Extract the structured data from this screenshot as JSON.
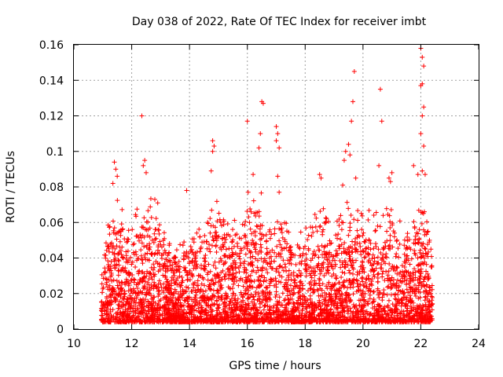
{
  "chart_data": {
    "type": "scatter",
    "title": "Day 038 of 2022, Rate Of TEC Index for receiver imbt",
    "xlabel": "GPS time / hours",
    "ylabel": "ROTI / TECUs",
    "xlim": [
      10,
      24
    ],
    "ylim": [
      0,
      0.16
    ],
    "xticks": [
      "10",
      "12",
      "14",
      "16",
      "18",
      "20",
      "22",
      "24"
    ],
    "yticks": [
      "0",
      "0.02",
      "0.04",
      "0.06",
      "0.08",
      "0.1",
      "0.12",
      "0.14",
      "0.16"
    ],
    "grid": true,
    "marker": "plus",
    "color": "#ff0000",
    "points": [
      [
        11.4,
        0.094
      ],
      [
        11.45,
        0.09
      ],
      [
        11.5,
        0.086
      ],
      [
        11.35,
        0.082
      ],
      [
        12.35,
        0.12
      ],
      [
        12.45,
        0.095
      ],
      [
        12.4,
        0.092
      ],
      [
        12.5,
        0.088
      ],
      [
        12.8,
        0.073
      ],
      [
        12.9,
        0.071
      ],
      [
        13.9,
        0.078
      ],
      [
        14.8,
        0.106
      ],
      [
        14.85,
        0.103
      ],
      [
        14.8,
        0.1
      ],
      [
        14.75,
        0.089
      ],
      [
        16.0,
        0.117
      ],
      [
        16.2,
        0.087
      ],
      [
        16.4,
        0.102
      ],
      [
        16.45,
        0.11
      ],
      [
        16.5,
        0.128
      ],
      [
        16.55,
        0.127
      ],
      [
        17.0,
        0.114
      ],
      [
        17.05,
        0.11
      ],
      [
        17.0,
        0.106
      ],
      [
        17.1,
        0.102
      ],
      [
        17.05,
        0.086
      ],
      [
        17.1,
        0.077
      ],
      [
        18.5,
        0.087
      ],
      [
        18.55,
        0.085
      ],
      [
        19.35,
        0.095
      ],
      [
        19.4,
        0.1
      ],
      [
        19.5,
        0.104
      ],
      [
        19.55,
        0.098
      ],
      [
        19.7,
        0.145
      ],
      [
        19.65,
        0.128
      ],
      [
        19.6,
        0.117
      ],
      [
        19.3,
        0.081
      ],
      [
        19.75,
        0.085
      ],
      [
        20.6,
        0.135
      ],
      [
        20.65,
        0.117
      ],
      [
        20.55,
        0.092
      ],
      [
        20.9,
        0.085
      ],
      [
        20.95,
        0.083
      ],
      [
        21.0,
        0.088
      ],
      [
        21.75,
        0.092
      ],
      [
        21.9,
        0.087
      ],
      [
        22.0,
        0.158
      ],
      [
        22.05,
        0.153
      ],
      [
        22.1,
        0.148
      ],
      [
        22.05,
        0.138
      ],
      [
        22.0,
        0.137
      ],
      [
        22.1,
        0.125
      ],
      [
        22.05,
        0.12
      ],
      [
        22.0,
        0.11
      ],
      [
        22.1,
        0.103
      ],
      [
        22.05,
        0.089
      ],
      [
        22.15,
        0.087
      ],
      [
        22.25,
        0.055
      ],
      [
        22.3,
        0.05
      ],
      [
        22.35,
        0.045
      ]
    ],
    "density": {
      "x_range": [
        10.95,
        22.4
      ],
      "baseline_min": 0.004,
      "envelope": [
        [
          11.0,
          0.045
        ],
        [
          11.3,
          0.065
        ],
        [
          11.5,
          0.07
        ],
        [
          11.8,
          0.055
        ],
        [
          12.0,
          0.062
        ],
        [
          12.3,
          0.07
        ],
        [
          12.6,
          0.068
        ],
        [
          12.9,
          0.07
        ],
        [
          13.2,
          0.05
        ],
        [
          13.5,
          0.045
        ],
        [
          13.8,
          0.05
        ],
        [
          14.1,
          0.052
        ],
        [
          14.4,
          0.055
        ],
        [
          14.7,
          0.065
        ],
        [
          15.0,
          0.07
        ],
        [
          15.3,
          0.06
        ],
        [
          15.6,
          0.065
        ],
        [
          15.9,
          0.07
        ],
        [
          16.2,
          0.075
        ],
        [
          16.5,
          0.07
        ],
        [
          16.8,
          0.065
        ],
        [
          17.1,
          0.062
        ],
        [
          17.4,
          0.06
        ],
        [
          17.7,
          0.052
        ],
        [
          18.0,
          0.055
        ],
        [
          18.3,
          0.06
        ],
        [
          18.6,
          0.07
        ],
        [
          18.9,
          0.055
        ],
        [
          19.2,
          0.06
        ],
        [
          19.5,
          0.07
        ],
        [
          19.8,
          0.072
        ],
        [
          20.1,
          0.065
        ],
        [
          20.4,
          0.06
        ],
        [
          20.7,
          0.065
        ],
        [
          21.0,
          0.07
        ],
        [
          21.3,
          0.06
        ],
        [
          21.6,
          0.058
        ],
        [
          21.9,
          0.07
        ],
        [
          22.2,
          0.06
        ],
        [
          22.4,
          0.035
        ]
      ]
    }
  }
}
